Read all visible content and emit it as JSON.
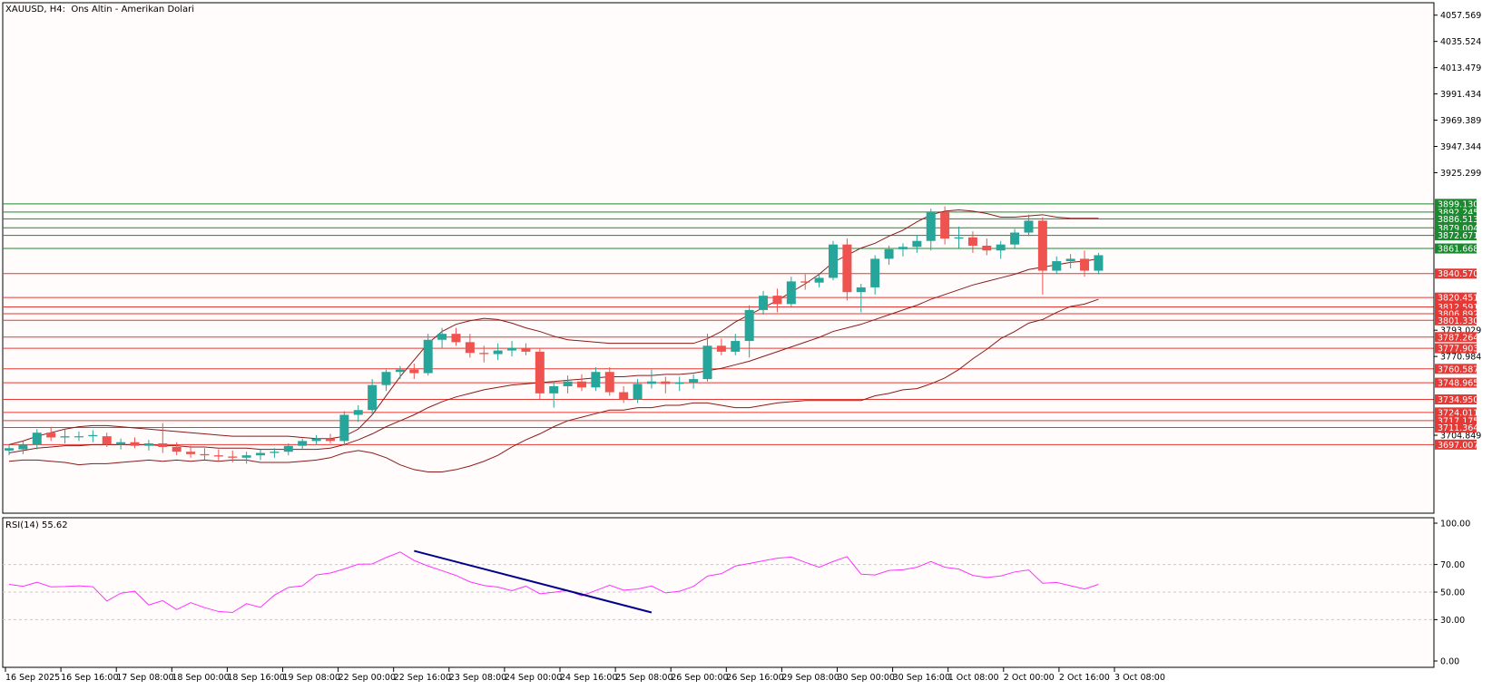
{
  "header": {
    "symbol_label": "XAUUSD, H4:  Ons Altin - Amerikan Dolari"
  },
  "colors": {
    "background": "#fffcfb",
    "bull": "#26a69a",
    "bear": "#ef5350",
    "support_line": "#e53935",
    "resistance_line": "#1b8a2f",
    "bollinger": "#8b1a1a",
    "rsi": "#ff33ff",
    "trendline": "#00008b"
  },
  "price_axis": {
    "ticks": [
      "4057.569",
      "4035.524",
      "4013.479",
      "3991.434",
      "3969.389",
      "3947.344",
      "3925.299",
      "3903.254",
      "3881.209",
      "3859.164",
      "3837.119",
      "3815.074",
      "3793.029",
      "3770.984",
      "3748.939",
      "3726.894",
      "3704.849"
    ],
    "visible_ticks": [
      "4057.569",
      "4035.524",
      "4013.479",
      "3991.434",
      "3969.389",
      "3947.344",
      "3925.299",
      "3793.029",
      "3770.984",
      "3704.849"
    ]
  },
  "levels": {
    "green": [
      "3899.130",
      "3892.245",
      "3886.513",
      "3879.004",
      "3872.671",
      "3861.668"
    ],
    "red": [
      "3840.570",
      "3820.451",
      "3812.591",
      "3806.892",
      "3801.330",
      "3787.264",
      "3777.903",
      "3760.587",
      "3748.965",
      "3734.950",
      "3724.011",
      "3717.175",
      "3711.364",
      "3697.007"
    ]
  },
  "time_axis": {
    "labels": [
      "16 Sep 2025",
      "16 Sep 16:00",
      "17 Sep 08:00",
      "18 Sep 00:00",
      "18 Sep 16:00",
      "19 Sep 08:00",
      "22 Sep 00:00",
      "22 Sep 16:00",
      "23 Sep 08:00",
      "24 Sep 00:00",
      "24 Sep 16:00",
      "25 Sep 08:00",
      "26 Sep 00:00",
      "26 Sep 16:00",
      "29 Sep 08:00",
      "30 Sep 00:00",
      "30 Sep 16:00",
      "1 Oct 08:00",
      "2 Oct 00:00",
      "2 Oct 16:00",
      "3 Oct 08:00"
    ]
  },
  "rsi_panel": {
    "label": "RSI(14) 55.62",
    "ticks": [
      "100.00",
      "70.00",
      "50.00",
      "30.00",
      "0.00"
    ]
  },
  "chart_data": {
    "type": "candlestick",
    "candles": [
      {
        "o": 3692,
        "h": 3697,
        "l": 3688,
        "c": 3694
      },
      {
        "o": 3693,
        "h": 3700,
        "l": 3689,
        "c": 3697
      },
      {
        "o": 3697,
        "h": 3710,
        "l": 3693,
        "c": 3707
      },
      {
        "o": 3707,
        "h": 3712,
        "l": 3700,
        "c": 3703
      },
      {
        "o": 3703,
        "h": 3710,
        "l": 3698,
        "c": 3704
      },
      {
        "o": 3704,
        "h": 3708,
        "l": 3700,
        "c": 3704
      },
      {
        "o": 3704,
        "h": 3709,
        "l": 3699,
        "c": 3705
      },
      {
        "o": 3704,
        "h": 3707,
        "l": 3695,
        "c": 3697
      },
      {
        "o": 3697,
        "h": 3702,
        "l": 3693,
        "c": 3699
      },
      {
        "o": 3699,
        "h": 3703,
        "l": 3694,
        "c": 3696
      },
      {
        "o": 3696,
        "h": 3701,
        "l": 3692,
        "c": 3698
      },
      {
        "o": 3698,
        "h": 3715,
        "l": 3690,
        "c": 3695
      },
      {
        "o": 3695,
        "h": 3699,
        "l": 3688,
        "c": 3691
      },
      {
        "o": 3691,
        "h": 3696,
        "l": 3686,
        "c": 3689
      },
      {
        "o": 3689,
        "h": 3694,
        "l": 3684,
        "c": 3688
      },
      {
        "o": 3688,
        "h": 3693,
        "l": 3683,
        "c": 3687
      },
      {
        "o": 3687,
        "h": 3692,
        "l": 3682,
        "c": 3686
      },
      {
        "o": 3686,
        "h": 3691,
        "l": 3681,
        "c": 3688
      },
      {
        "o": 3688,
        "h": 3693,
        "l": 3684,
        "c": 3690
      },
      {
        "o": 3690,
        "h": 3694,
        "l": 3686,
        "c": 3691
      },
      {
        "o": 3691,
        "h": 3698,
        "l": 3688,
        "c": 3696
      },
      {
        "o": 3696,
        "h": 3702,
        "l": 3693,
        "c": 3700
      },
      {
        "o": 3700,
        "h": 3705,
        "l": 3697,
        "c": 3702
      },
      {
        "o": 3702,
        "h": 3706,
        "l": 3698,
        "c": 3700
      },
      {
        "o": 3700,
        "h": 3725,
        "l": 3696,
        "c": 3722
      },
      {
        "o": 3722,
        "h": 3730,
        "l": 3716,
        "c": 3726
      },
      {
        "o": 3726,
        "h": 3752,
        "l": 3722,
        "c": 3747
      },
      {
        "o": 3747,
        "h": 3760,
        "l": 3742,
        "c": 3758
      },
      {
        "o": 3758,
        "h": 3763,
        "l": 3752,
        "c": 3760
      },
      {
        "o": 3760,
        "h": 3765,
        "l": 3752,
        "c": 3757
      },
      {
        "o": 3757,
        "h": 3790,
        "l": 3755,
        "c": 3785
      },
      {
        "o": 3785,
        "h": 3795,
        "l": 3778,
        "c": 3790
      },
      {
        "o": 3790,
        "h": 3795,
        "l": 3780,
        "c": 3783
      },
      {
        "o": 3783,
        "h": 3790,
        "l": 3770,
        "c": 3774
      },
      {
        "o": 3774,
        "h": 3780,
        "l": 3766,
        "c": 3773
      },
      {
        "o": 3773,
        "h": 3782,
        "l": 3768,
        "c": 3776
      },
      {
        "o": 3776,
        "h": 3784,
        "l": 3771,
        "c": 3778
      },
      {
        "o": 3778,
        "h": 3782,
        "l": 3772,
        "c": 3775
      },
      {
        "o": 3775,
        "h": 3778,
        "l": 3735,
        "c": 3740
      },
      {
        "o": 3740,
        "h": 3750,
        "l": 3728,
        "c": 3746
      },
      {
        "o": 3746,
        "h": 3755,
        "l": 3740,
        "c": 3750
      },
      {
        "o": 3750,
        "h": 3756,
        "l": 3742,
        "c": 3745
      },
      {
        "o": 3745,
        "h": 3762,
        "l": 3742,
        "c": 3758
      },
      {
        "o": 3758,
        "h": 3762,
        "l": 3738,
        "c": 3741
      },
      {
        "o": 3741,
        "h": 3746,
        "l": 3732,
        "c": 3735
      },
      {
        "o": 3735,
        "h": 3752,
        "l": 3732,
        "c": 3748
      },
      {
        "o": 3748,
        "h": 3760,
        "l": 3744,
        "c": 3750
      },
      {
        "o": 3750,
        "h": 3754,
        "l": 3740,
        "c": 3748
      },
      {
        "o": 3748,
        "h": 3754,
        "l": 3742,
        "c": 3749
      },
      {
        "o": 3749,
        "h": 3756,
        "l": 3744,
        "c": 3752
      },
      {
        "o": 3752,
        "h": 3790,
        "l": 3750,
        "c": 3780
      },
      {
        "o": 3780,
        "h": 3786,
        "l": 3772,
        "c": 3775
      },
      {
        "o": 3775,
        "h": 3790,
        "l": 3772,
        "c": 3784
      },
      {
        "o": 3784,
        "h": 3814,
        "l": 3770,
        "c": 3810
      },
      {
        "o": 3810,
        "h": 3826,
        "l": 3806,
        "c": 3822
      },
      {
        "o": 3822,
        "h": 3828,
        "l": 3808,
        "c": 3815
      },
      {
        "o": 3815,
        "h": 3838,
        "l": 3812,
        "c": 3834
      },
      {
        "o": 3834,
        "h": 3840,
        "l": 3827,
        "c": 3833
      },
      {
        "o": 3833,
        "h": 3840,
        "l": 3829,
        "c": 3837
      },
      {
        "o": 3837,
        "h": 3868,
        "l": 3835,
        "c": 3865
      },
      {
        "o": 3865,
        "h": 3870,
        "l": 3818,
        "c": 3825
      },
      {
        "o": 3825,
        "h": 3832,
        "l": 3808,
        "c": 3829
      },
      {
        "o": 3829,
        "h": 3856,
        "l": 3823,
        "c": 3853
      },
      {
        "o": 3853,
        "h": 3864,
        "l": 3848,
        "c": 3861
      },
      {
        "o": 3861,
        "h": 3866,
        "l": 3855,
        "c": 3863
      },
      {
        "o": 3863,
        "h": 3873,
        "l": 3858,
        "c": 3868
      },
      {
        "o": 3868,
        "h": 3895,
        "l": 3860,
        "c": 3892
      },
      {
        "o": 3892,
        "h": 3897,
        "l": 3865,
        "c": 3870
      },
      {
        "o": 3870,
        "h": 3880,
        "l": 3862,
        "c": 3871
      },
      {
        "o": 3871,
        "h": 3876,
        "l": 3858,
        "c": 3864
      },
      {
        "o": 3864,
        "h": 3870,
        "l": 3856,
        "c": 3860
      },
      {
        "o": 3860,
        "h": 3868,
        "l": 3853,
        "c": 3865
      },
      {
        "o": 3865,
        "h": 3878,
        "l": 3862,
        "c": 3875
      },
      {
        "o": 3875,
        "h": 3890,
        "l": 3872,
        "c": 3885
      },
      {
        "o": 3885,
        "h": 3888,
        "l": 3823,
        "c": 3843
      },
      {
        "o": 3843,
        "h": 3855,
        "l": 3840,
        "c": 3851
      },
      {
        "o": 3851,
        "h": 3857,
        "l": 3845,
        "c": 3853
      },
      {
        "o": 3853,
        "h": 3860,
        "l": 3838,
        "c": 3843
      },
      {
        "o": 3843,
        "h": 3858,
        "l": 3840,
        "c": 3856
      }
    ],
    "bollinger": {
      "upper": [
        3697,
        3700,
        3704,
        3707,
        3710,
        3712,
        3713,
        3713,
        3712,
        3711,
        3710,
        3709,
        3708,
        3707,
        3706,
        3705,
        3704,
        3704,
        3704,
        3704,
        3704,
        3703,
        3702,
        3702,
        3704,
        3710,
        3722,
        3738,
        3754,
        3768,
        3782,
        3792,
        3798,
        3801,
        3803,
        3802,
        3799,
        3795,
        3792,
        3788,
        3785,
        3784,
        3783,
        3782,
        3782,
        3782,
        3782,
        3782,
        3782,
        3782,
        3786,
        3792,
        3800,
        3806,
        3812,
        3818,
        3825,
        3832,
        3840,
        3850,
        3856,
        3862,
        3866,
        3872,
        3877,
        3884,
        3890,
        3893,
        3894,
        3893,
        3891,
        3888,
        3888,
        3889,
        3890,
        3888,
        3887,
        3887,
        3887
      ],
      "middle": [
        3690,
        3692,
        3694,
        3695,
        3696,
        3696,
        3697,
        3697,
        3697,
        3697,
        3697,
        3696,
        3696,
        3695,
        3695,
        3694,
        3694,
        3694,
        3693,
        3693,
        3693,
        3693,
        3693,
        3694,
        3697,
        3701,
        3706,
        3712,
        3717,
        3722,
        3728,
        3733,
        3737,
        3740,
        3743,
        3745,
        3747,
        3748,
        3749,
        3750,
        3751,
        3752,
        3753,
        3754,
        3754,
        3755,
        3755,
        3756,
        3756,
        3757,
        3759,
        3761,
        3764,
        3767,
        3771,
        3775,
        3779,
        3783,
        3787,
        3792,
        3795,
        3798,
        3802,
        3806,
        3810,
        3814,
        3819,
        3823,
        3827,
        3831,
        3834,
        3837,
        3840,
        3844,
        3846,
        3848,
        3850,
        3851,
        3853
      ],
      "lower": [
        3683,
        3684,
        3684,
        3683,
        3682,
        3680,
        3681,
        3681,
        3682,
        3683,
        3684,
        3683,
        3684,
        3683,
        3684,
        3683,
        3684,
        3684,
        3682,
        3682,
        3682,
        3683,
        3684,
        3686,
        3690,
        3692,
        3690,
        3686,
        3680,
        3676,
        3674,
        3674,
        3676,
        3679,
        3683,
        3688,
        3695,
        3701,
        3706,
        3712,
        3717,
        3720,
        3723,
        3726,
        3726,
        3728,
        3728,
        3730,
        3730,
        3732,
        3732,
        3730,
        3728,
        3728,
        3730,
        3732,
        3733,
        3734,
        3734,
        3734,
        3734,
        3734,
        3738,
        3740,
        3743,
        3744,
        3748,
        3753,
        3760,
        3769,
        3777,
        3786,
        3792,
        3799,
        3802,
        3808,
        3813,
        3815,
        3819
      ]
    },
    "rsi": [
      55.6,
      54.2,
      57.1,
      53.8,
      54.0,
      54.5,
      53.9,
      43.5,
      49.2,
      50.6,
      40.6,
      43.8,
      37.3,
      42.3,
      38.7,
      35.9,
      35.2,
      41.6,
      38.9,
      47.8,
      53.4,
      54.5,
      62.4,
      63.8,
      66.8,
      70.2,
      70.4,
      75.1,
      79.1,
      72.9,
      68.9,
      65.5,
      62.1,
      57.4,
      54.8,
      53.6,
      51.0,
      54.3,
      48.8,
      49.8,
      51.2,
      47.3,
      51.1,
      55.0,
      51.4,
      52.2,
      54.4,
      49.4,
      50.6,
      54.1,
      61.6,
      63.4,
      68.9,
      70.7,
      72.7,
      74.6,
      75.4,
      71.6,
      68.0,
      72.2,
      75.7,
      63.0,
      62.4,
      65.7,
      66.2,
      68.0,
      72.2,
      68.0,
      66.7,
      62.1,
      60.6,
      61.7,
      64.6,
      66.0,
      56.4,
      57.0,
      54.6,
      52.2,
      55.6
    ],
    "ylim": [
      3697,
      4068
    ],
    "rsi_ylim": [
      0,
      100
    ],
    "rsi_trendline": {
      "from": {
        "index": 29,
        "value": 79.9
      },
      "to": {
        "index": 46,
        "value": 35.2
      }
    }
  }
}
